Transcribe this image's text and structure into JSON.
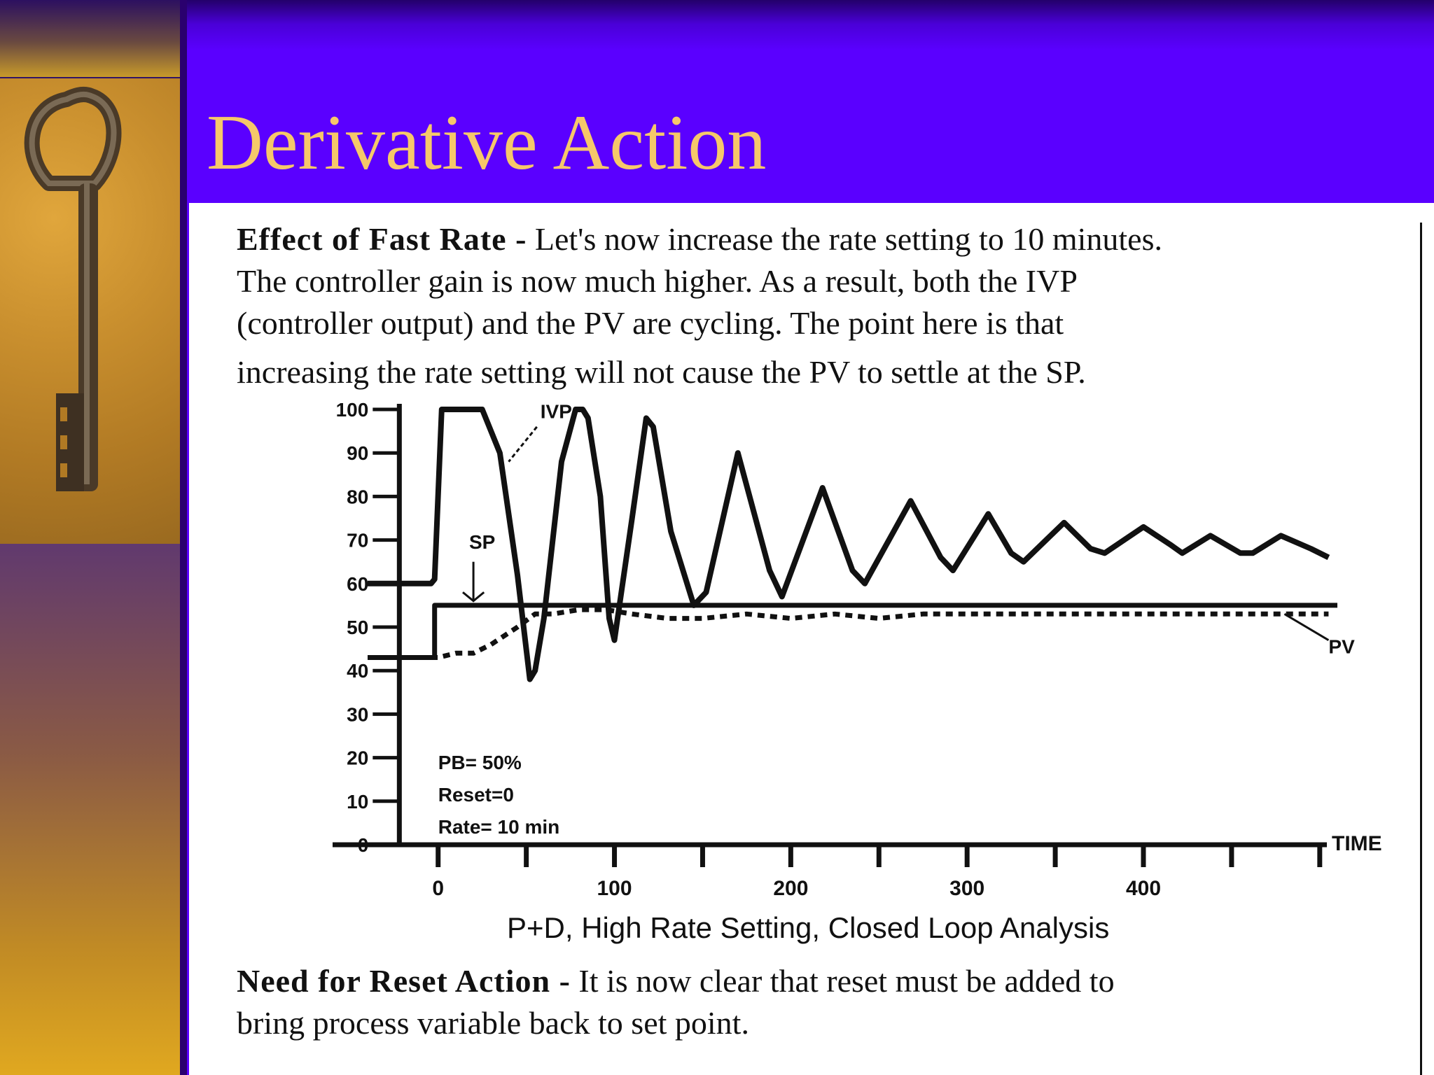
{
  "slide": {
    "title": "Derivative Action"
  },
  "intro": {
    "heading": "Effect of Fast Rate -",
    "lines": [
      " Let's now increase the rate setting to 10 minutes.",
      "The controller gain is now much higher. As a result, both the IVP",
      "(controller output) and the PV are cycling. The point here is that",
      "increasing the rate setting will not cause the PV to settle at the SP."
    ]
  },
  "outro": {
    "heading": "Need for Reset Action -",
    "lines": [
      " It is now clear that reset must be added to",
      "bring process variable back to set point."
    ]
  },
  "colors": {
    "title_text": "#f6c86a",
    "title_band": "#5a00ff",
    "trace": "#111111"
  },
  "chart_data": {
    "type": "line",
    "caption": "P+D, High Rate Setting, Closed Loop Analysis",
    "xlabel": "TIME",
    "ylabel": "",
    "xlim": [
      -40,
      510
    ],
    "ylim": [
      0,
      100
    ],
    "x_ticks": [
      0,
      100,
      200,
      300,
      400
    ],
    "y_ticks": [
      0,
      10,
      20,
      30,
      40,
      50,
      60,
      70,
      80,
      90,
      100
    ],
    "y_tick_labels": [
      "0",
      "10",
      "20",
      "30",
      "40",
      "50",
      "60",
      "70",
      "80",
      "90",
      "100"
    ],
    "x_tick_labels": [
      "0",
      "100",
      "200",
      "300",
      "400"
    ],
    "annotations": {
      "settings": [
        "PB= 50%",
        "Reset=0",
        "Rate= 10 min"
      ],
      "sp_label": "SP",
      "pv_label": "PV",
      "ivp_label": "IVP"
    },
    "series": [
      {
        "name": "IVP",
        "style": "solid",
        "x": [
          -40,
          -4,
          -2,
          2,
          10,
          25,
          35,
          45,
          52,
          55,
          60,
          70,
          78,
          82,
          85,
          92,
          97,
          100,
          110,
          118,
          122,
          132,
          145,
          152,
          170,
          188,
          195,
          218,
          235,
          242,
          268,
          285,
          292,
          312,
          325,
          332,
          355,
          370,
          378,
          400,
          415,
          422,
          438,
          455,
          462,
          478,
          495,
          505
        ],
        "y": [
          60,
          60,
          61,
          100,
          100,
          100,
          90,
          62,
          38,
          40,
          52,
          88,
          100,
          100,
          98,
          80,
          52,
          47,
          75,
          98,
          96,
          72,
          55,
          58,
          90,
          63,
          57,
          82,
          63,
          60,
          79,
          66,
          63,
          76,
          67,
          65,
          74,
          68,
          67,
          73,
          69,
          67,
          71,
          67,
          67,
          71,
          68,
          66
        ]
      },
      {
        "name": "PV",
        "style": "dashed",
        "x": [
          -40,
          -2,
          0,
          10,
          20,
          30,
          45,
          55,
          65,
          80,
          95,
          110,
          130,
          150,
          175,
          200,
          225,
          250,
          275,
          300,
          325,
          350,
          375,
          400,
          425,
          450,
          475,
          490,
          505
        ],
        "y": [
          43,
          43,
          43,
          44,
          44,
          46,
          50,
          53,
          53,
          54,
          54,
          53,
          52,
          52,
          53,
          52,
          53,
          52,
          53,
          53,
          53,
          53,
          53,
          53,
          53,
          53,
          53,
          53,
          53
        ],
        "final_value": 53
      },
      {
        "name": "SP",
        "style": "solid",
        "x": [
          -40,
          -2,
          -2,
          510
        ],
        "y": [
          43,
          43,
          55,
          55
        ],
        "final_value": 55
      }
    ]
  }
}
